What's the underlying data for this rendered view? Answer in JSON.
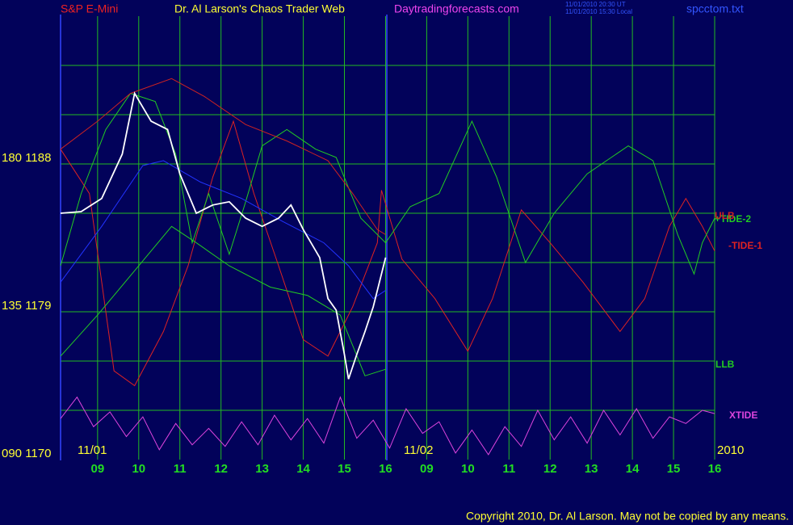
{
  "chart_data": {
    "type": "line",
    "title": "Dr. Al Larson's Chaos Trader Web",
    "instrument": "S&P E-Mini",
    "site": "Daytradingforecasts.com",
    "timestamps": [
      "11/01/2010 20:30 UT",
      "11/01/2010 15:30 Local"
    ],
    "file": "spcctom.txt",
    "copyright": "Copyright 2010, Dr. Al Larson. May not be copied by any means.",
    "date_labels": [
      "11/01",
      "11/02",
      "2010"
    ],
    "xlim": [
      0.1,
      16
    ],
    "ylim": [
      1170,
      1197
    ],
    "xticks": [
      {
        "value": 1,
        "label": "09"
      },
      {
        "value": 2,
        "label": "10"
      },
      {
        "value": 3,
        "label": "11"
      },
      {
        "value": 4,
        "label": "12"
      },
      {
        "value": 5,
        "label": "13"
      },
      {
        "value": 6,
        "label": "14"
      },
      {
        "value": 7,
        "label": "15"
      },
      {
        "value": 8,
        "label": "16"
      },
      {
        "value": 9,
        "label": "09"
      },
      {
        "value": 10,
        "label": "10"
      },
      {
        "value": 11,
        "label": "11"
      },
      {
        "value": 12,
        "label": "12"
      },
      {
        "value": 13,
        "label": "13"
      },
      {
        "value": 14,
        "label": "14"
      },
      {
        "value": 15,
        "label": "15"
      },
      {
        "value": 16,
        "label": "16"
      }
    ],
    "yticks": [
      {
        "value": 1188,
        "label": "180  1188"
      },
      {
        "value": 1179,
        "label": "135  1179"
      },
      {
        "value": 1170,
        "label": "090  1170"
      }
    ],
    "ygrid": [
      1173,
      1176,
      1179,
      1182,
      1185,
      1188,
      1191,
      1194
    ],
    "grid": true,
    "grid_color": "#22bb22",
    "series": [
      {
        "name": "-TIDE-1",
        "color": "#dd2222",
        "x": [
          0.1,
          0.8,
          1.4,
          1.9,
          2.6,
          3.2,
          3.8,
          4.3,
          4.8,
          5.4,
          6.0,
          6.6,
          7.2,
          7.8,
          7.9,
          8.4,
          9.2,
          10.0,
          10.6,
          11.3,
          12.0,
          12.8,
          13.7,
          14.3,
          14.9,
          15.3,
          15.7,
          16.0
        ],
        "values": [
          1188.9,
          1186.2,
          1175.4,
          1174.5,
          1177.8,
          1181.8,
          1187.2,
          1190.6,
          1186.2,
          1181.8,
          1177.3,
          1176.3,
          1179.3,
          1183.2,
          1186.4,
          1182.2,
          1179.8,
          1176.6,
          1179.8,
          1185.2,
          1183.2,
          1180.8,
          1177.8,
          1179.8,
          1184.2,
          1185.9,
          1184.2,
          1182.7
        ]
      },
      {
        "name": "+TIDE-2",
        "color": "#22cc22",
        "x": [
          0.1,
          0.6,
          1.2,
          1.8,
          2.4,
          2.9,
          3.3,
          3.7,
          4.2,
          4.6,
          5.0,
          5.6,
          6.3,
          6.8,
          7.4,
          8.0,
          8.6,
          9.3,
          10.1,
          10.7,
          11.4,
          12.1,
          12.9,
          13.9,
          14.5,
          15.1,
          15.5,
          15.7,
          16.0
        ],
        "values": [
          1181.8,
          1186.2,
          1190.1,
          1192.3,
          1191.8,
          1188.6,
          1183.2,
          1186.2,
          1182.5,
          1185.7,
          1189.1,
          1190.1,
          1188.9,
          1188.4,
          1184.7,
          1183.2,
          1185.4,
          1186.2,
          1190.6,
          1187.2,
          1182.0,
          1185.0,
          1187.4,
          1189.1,
          1188.2,
          1183.7,
          1181.3,
          1183.2,
          1184.7
        ]
      },
      {
        "name": "ULB",
        "color": "#cc2222",
        "x": [
          0.1,
          1.0,
          1.8,
          2.8,
          3.6,
          4.6,
          5.6,
          6.6,
          7.2,
          7.8,
          8.0
        ],
        "values": [
          1188.9,
          1190.6,
          1192.3,
          1193.2,
          1192.1,
          1190.4,
          1189.4,
          1188.2,
          1186.2,
          1184.0,
          1183.7
        ]
      },
      {
        "name": "LLB",
        "color": "#22cc22",
        "x": [
          0.1,
          1.0,
          2.0,
          2.8,
          3.4,
          4.2,
          5.2,
          6.1,
          6.9,
          7.5,
          8.0
        ],
        "values": [
          1176.3,
          1178.8,
          1181.8,
          1184.2,
          1183.2,
          1181.8,
          1180.5,
          1180.0,
          1178.8,
          1175.1,
          1175.5
        ]
      },
      {
        "name": "XTIDE",
        "color": "#dd44dd",
        "x": [
          0.1,
          0.5,
          0.9,
          1.3,
          1.7,
          2.1,
          2.5,
          2.9,
          3.3,
          3.7,
          4.1,
          4.5,
          4.9,
          5.3,
          5.7,
          6.1,
          6.5,
          6.9,
          7.3,
          7.7,
          8.1,
          8.5,
          8.9,
          9.3,
          9.7,
          10.1,
          10.5,
          10.9,
          11.3,
          11.7,
          12.1,
          12.5,
          12.9,
          13.3,
          13.7,
          14.1,
          14.5,
          14.9,
          15.3,
          15.7,
          16.0
        ],
        "values": [
          1172.5,
          1173.8,
          1172.0,
          1172.9,
          1171.4,
          1172.6,
          1170.6,
          1172.2,
          1170.9,
          1171.9,
          1170.8,
          1172.3,
          1170.9,
          1172.7,
          1171.2,
          1172.5,
          1171.0,
          1173.8,
          1171.3,
          1172.4,
          1170.7,
          1173.1,
          1171.6,
          1172.3,
          1170.4,
          1171.8,
          1170.3,
          1172.0,
          1170.8,
          1173.0,
          1171.2,
          1172.6,
          1171.0,
          1173.0,
          1171.5,
          1173.1,
          1171.3,
          1172.6,
          1172.2,
          1173.0,
          1172.8
        ]
      },
      {
        "color": "#2233ff",
        "x": [
          0.1,
          1.1,
          2.1,
          2.6,
          3.5,
          4.5,
          5.5,
          6.5,
          7.1,
          7.7,
          8.0
        ],
        "values": [
          1180.8,
          1184.2,
          1187.9,
          1188.2,
          1186.9,
          1185.9,
          1184.5,
          1183.2,
          1181.8,
          1179.8,
          1180.3
        ]
      },
      {
        "color": "#ffffff",
        "x": [
          0.1,
          0.6,
          1.1,
          1.6,
          1.9,
          2.3,
          2.7,
          3.0,
          3.4,
          3.8,
          4.2,
          4.6,
          5.0,
          5.4,
          5.7,
          6.0,
          6.4,
          6.6,
          6.8,
          7.0,
          7.1,
          7.3,
          7.5,
          7.7,
          7.9,
          8.0
        ],
        "values": [
          1185.0,
          1185.1,
          1185.9,
          1188.6,
          1192.3,
          1190.6,
          1190.1,
          1187.4,
          1185.0,
          1185.5,
          1185.7,
          1184.7,
          1184.2,
          1184.7,
          1185.5,
          1184.0,
          1182.3,
          1179.8,
          1179.1,
          1176.4,
          1174.9,
          1176.4,
          1177.8,
          1179.3,
          1181.3,
          1182.3
        ]
      }
    ]
  }
}
